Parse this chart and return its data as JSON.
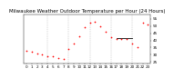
{
  "title": "Milwaukee Weather Outdoor Temperature per Hour (24 Hours)",
  "background_color": "#ffffff",
  "dot_color": "#ff0000",
  "line_color": "#000000",
  "grid_color": "#aaaaaa",
  "xlim": [
    -0.5,
    23.5
  ],
  "ylim": [
    24,
    58
  ],
  "hours": [
    0,
    1,
    2,
    3,
    4,
    5,
    6,
    7,
    8,
    9,
    10,
    11,
    12,
    13,
    14,
    15,
    16,
    17,
    18,
    19,
    20,
    21,
    22,
    23
  ],
  "temps": [
    33,
    32,
    31,
    30,
    29,
    29,
    28,
    27,
    34,
    38,
    43,
    49,
    52,
    53,
    50,
    46,
    42,
    41,
    41,
    41,
    38,
    35,
    52,
    51
  ],
  "xticks": [
    0,
    1,
    2,
    3,
    4,
    5,
    6,
    7,
    8,
    9,
    10,
    11,
    12,
    13,
    14,
    15,
    16,
    17,
    18,
    19,
    20,
    21,
    22,
    23
  ],
  "xtick_labels": [
    "0",
    "1",
    "2",
    "3",
    "4",
    "5",
    "6",
    "7",
    "8",
    "9",
    "10",
    "11",
    "12",
    "13",
    "14",
    "15",
    "16",
    "17",
    "18",
    "19",
    "20",
    "21",
    "22",
    "23"
  ],
  "yticks": [
    25,
    30,
    35,
    40,
    45,
    50,
    55
  ],
  "ytick_labels": [
    "25",
    "30",
    "35",
    "40",
    "45",
    "50",
    "55"
  ],
  "vgrid_positions": [
    4,
    8,
    12,
    16,
    20
  ],
  "hline_x": [
    17.0,
    20.0
  ],
  "hline_y": 41.5,
  "title_fontsize": 4.0,
  "tick_fontsize": 3.0,
  "dot_size": 1.5
}
